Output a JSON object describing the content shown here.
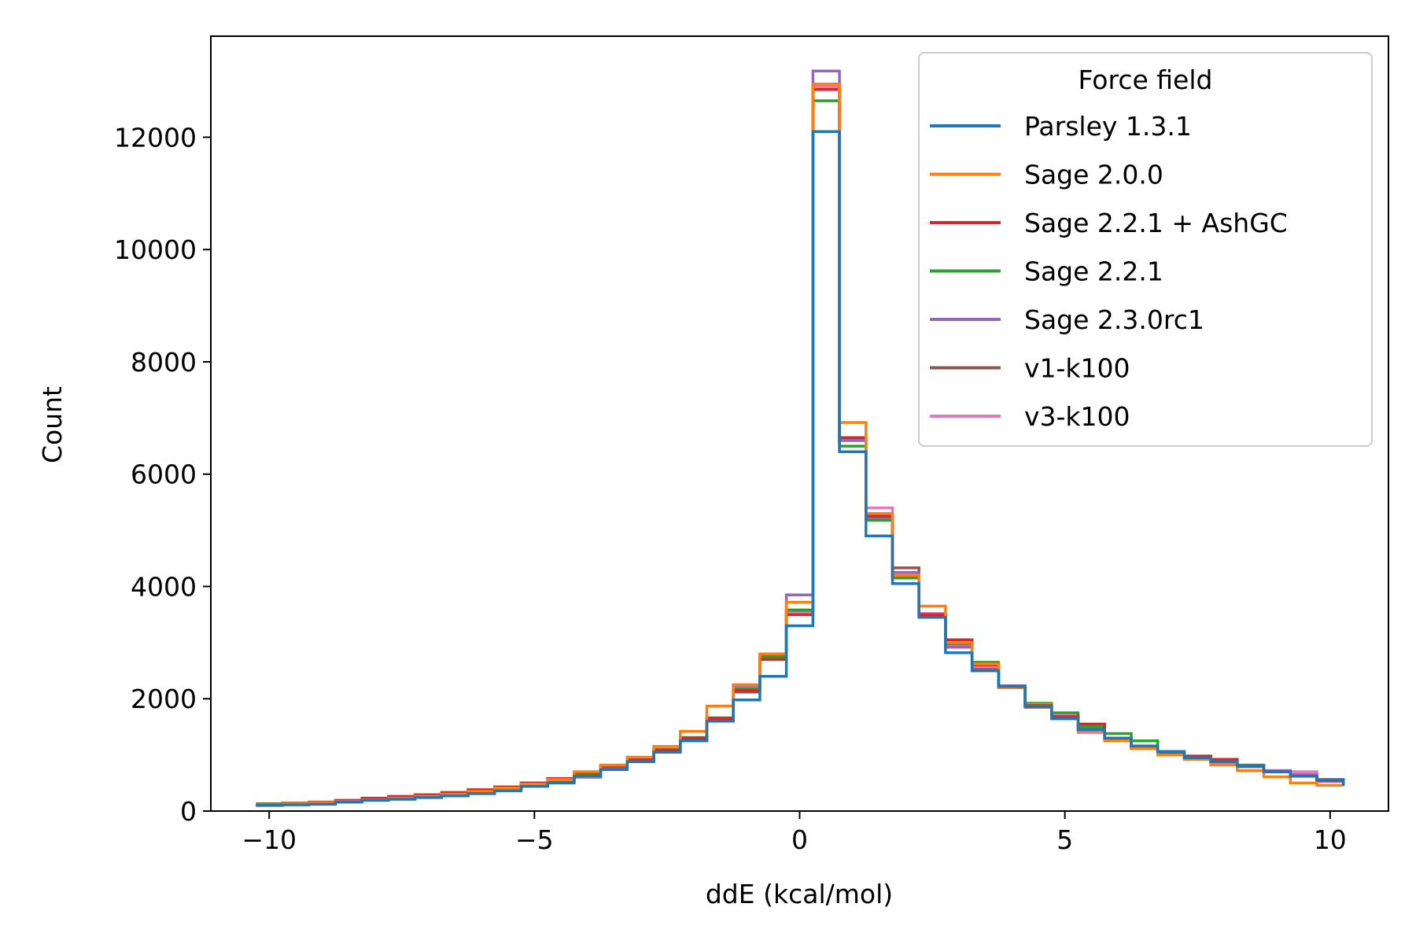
{
  "chart_data": {
    "type": "line",
    "step": true,
    "xlabel": "ddE (kcal/mol)",
    "ylabel": "Count",
    "xlim": [
      -11.1,
      11.1
    ],
    "ylim": [
      0,
      13800
    ],
    "xticks": [
      -10,
      -5,
      0,
      5,
      10
    ],
    "xtick_labels": [
      "−10",
      "−5",
      "0",
      "5",
      "10"
    ],
    "yticks": [
      0,
      2000,
      4000,
      6000,
      8000,
      10000,
      12000
    ],
    "ytick_labels": [
      "0",
      "2000",
      "4000",
      "6000",
      "8000",
      "10000",
      "12000"
    ],
    "grid": false,
    "legend": {
      "title": "Force field",
      "placement": "top-right"
    },
    "bin_edges": [
      -10.25,
      -9.75,
      -9.25,
      -8.75,
      -8.25,
      -7.75,
      -7.25,
      -6.75,
      -6.25,
      -5.75,
      -5.25,
      -4.75,
      -4.25,
      -3.75,
      -3.25,
      -2.75,
      -2.25,
      -1.75,
      -1.25,
      -0.75,
      -0.25,
      0.25,
      0.75,
      1.25,
      1.75,
      2.25,
      2.75,
      3.25,
      3.75,
      4.25,
      4.75,
      5.25,
      5.75,
      6.25,
      6.75,
      7.25,
      7.75,
      8.25,
      8.75,
      9.25,
      9.75,
      10.25
    ],
    "series": [
      {
        "name": "Parsley 1.3.1",
        "color": "#1f77b4",
        "values": [
          100,
          110,
          120,
          160,
          190,
          210,
          240,
          270,
          310,
          360,
          440,
          500,
          620,
          740,
          880,
          1050,
          1250,
          1600,
          1980,
          2400,
          3300,
          12100,
          6400,
          4900,
          4050,
          3450,
          2820,
          2500,
          2220,
          1880,
          1650,
          1450,
          1300,
          1160,
          1060,
          950,
          880,
          800,
          700,
          620,
          560,
          450
        ]
      },
      {
        "name": "Sage 2.0.0",
        "color": "#ff7f0e",
        "values": [
          110,
          130,
          150,
          170,
          200,
          230,
          260,
          300,
          350,
          410,
          480,
          560,
          700,
          820,
          960,
          1150,
          1420,
          1870,
          2250,
          2800,
          3720,
          12950,
          6920,
          5300,
          4200,
          3650,
          3000,
          2620,
          2200,
          1900,
          1640,
          1430,
          1250,
          1120,
          1000,
          920,
          820,
          720,
          610,
          500,
          460,
          450
        ]
      },
      {
        "name": "Sage 2.2.1 + AshGC",
        "color": "#d62728",
        "values": [
          120,
          140,
          160,
          190,
          230,
          260,
          290,
          330,
          380,
          430,
          500,
          580,
          680,
          800,
          930,
          1080,
          1300,
          1650,
          2150,
          2700,
          3500,
          12850,
          6650,
          5250,
          4200,
          3500,
          3050,
          2600,
          2220,
          1890,
          1680,
          1550,
          1300,
          1150,
          1050,
          980,
          920,
          800,
          700,
          620,
          550,
          480
        ]
      },
      {
        "name": "Sage 2.2.1",
        "color": "#2ca02c",
        "values": [
          130,
          140,
          160,
          180,
          210,
          240,
          270,
          310,
          360,
          420,
          490,
          560,
          650,
          800,
          940,
          1100,
          1310,
          1660,
          2180,
          2750,
          3580,
          12650,
          6500,
          5180,
          4150,
          3480,
          2980,
          2650,
          2220,
          1920,
          1750,
          1500,
          1380,
          1250,
          1050,
          940,
          880,
          820,
          700,
          620,
          560,
          490
        ]
      },
      {
        "name": "Sage 2.3.0rc1",
        "color": "#9467bd",
        "values": [
          110,
          130,
          150,
          170,
          200,
          230,
          260,
          300,
          350,
          410,
          480,
          560,
          650,
          790,
          920,
          1070,
          1290,
          1640,
          2240,
          2760,
          3850,
          13180,
          6600,
          5200,
          4250,
          3500,
          2920,
          2500,
          2230,
          1900,
          1680,
          1480,
          1290,
          1150,
          1050,
          980,
          870,
          790,
          720,
          650,
          550,
          470
        ]
      },
      {
        "name": "v1-k100",
        "color": "#8c564b",
        "values": [
          120,
          130,
          150,
          170,
          200,
          230,
          260,
          300,
          340,
          400,
          470,
          550,
          640,
          780,
          910,
          1060,
          1270,
          1630,
          2120,
          2720,
          3580,
          12950,
          6600,
          5200,
          4330,
          3500,
          2920,
          2520,
          2200,
          1850,
          1680,
          1480,
          1290,
          1130,
          1020,
          950,
          870,
          800,
          700,
          620,
          540,
          470
        ]
      },
      {
        "name": "v3-k100",
        "color": "#e377c2",
        "values": [
          110,
          130,
          150,
          170,
          200,
          230,
          260,
          300,
          340,
          400,
          470,
          540,
          600,
          780,
          900,
          1050,
          1280,
          1650,
          2230,
          2730,
          3550,
          12900,
          6600,
          5400,
          4200,
          3520,
          2950,
          2550,
          2220,
          1880,
          1700,
          1400,
          1290,
          1110,
          1020,
          960,
          880,
          800,
          720,
          700,
          530,
          460
        ]
      }
    ]
  }
}
